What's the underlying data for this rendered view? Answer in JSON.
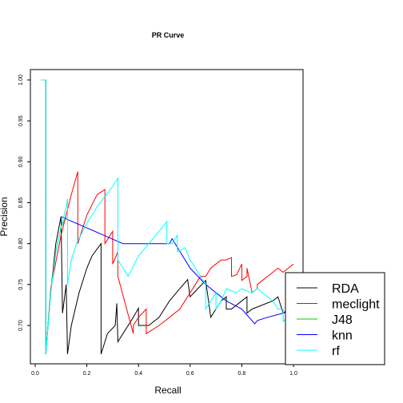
{
  "chart_data": {
    "type": "line",
    "title": "PR Curve",
    "xlabel": "Recall",
    "ylabel": "Precision",
    "xlim": [
      0.0,
      1.0
    ],
    "ylim": [
      0.665,
      1.0
    ],
    "xticks": [
      "0.0",
      "0.2",
      "0.4",
      "0.6",
      "0.8",
      "1.0"
    ],
    "yticks": [
      "0.70",
      "0.75",
      "0.80",
      "0.85",
      "0.90",
      "0.95",
      "1.00"
    ],
    "legend_position": "bottom-right",
    "series": [
      {
        "name": "RDA",
        "color": "#000000",
        "x": [
          0.023,
          0.041,
          0.041,
          0.06,
          0.08,
          0.1,
          0.106,
          0.12,
          0.125,
          0.14,
          0.17,
          0.2,
          0.22,
          0.255,
          0.255,
          0.28,
          0.31,
          0.316,
          0.32,
          0.34,
          0.36,
          0.38,
          0.4,
          0.4,
          0.41,
          0.44,
          0.48,
          0.52,
          0.56,
          0.59,
          0.6,
          0.63,
          0.66,
          0.66,
          0.68,
          0.7,
          0.72,
          0.74,
          0.74,
          0.76,
          0.8,
          0.82,
          0.82,
          0.84,
          0.88,
          0.92,
          0.94,
          0.96,
          0.98,
          1.0
        ],
        "y": [
          1.0,
          1.0,
          0.665,
          0.74,
          0.8,
          0.833,
          0.715,
          0.75,
          0.665,
          0.7,
          0.74,
          0.77,
          0.785,
          0.8,
          0.665,
          0.69,
          0.7,
          0.727,
          0.68,
          0.69,
          0.7,
          0.71,
          0.721,
          0.7,
          0.7,
          0.7,
          0.71,
          0.73,
          0.745,
          0.756,
          0.735,
          0.745,
          0.755,
          0.755,
          0.71,
          0.72,
          0.73,
          0.735,
          0.72,
          0.72,
          0.73,
          0.735,
          0.715,
          0.72,
          0.725,
          0.73,
          0.735,
          0.715,
          0.72,
          0.725
        ]
      },
      {
        "name": "meclight",
        "color": "#ff0000",
        "x": [
          0.023,
          0.041,
          0.041,
          0.06,
          0.1,
          0.14,
          0.165,
          0.165,
          0.2,
          0.24,
          0.27,
          0.27,
          0.3,
          0.3,
          0.32,
          0.32,
          0.38,
          0.38,
          0.4,
          0.43,
          0.43,
          0.48,
          0.52,
          0.56,
          0.58,
          0.58,
          0.6,
          0.62,
          0.64,
          0.66,
          0.68,
          0.7,
          0.72,
          0.74,
          0.76,
          0.76,
          0.78,
          0.8,
          0.8,
          0.82,
          0.82,
          0.84,
          0.86,
          0.86,
          0.88,
          0.9,
          0.92,
          0.94,
          0.96,
          0.98,
          1.0
        ],
        "y": [
          1.0,
          1.0,
          0.665,
          0.745,
          0.81,
          0.86,
          0.888,
          0.8,
          0.835,
          0.86,
          0.866,
          0.8,
          0.815,
          0.775,
          0.79,
          0.76,
          0.69,
          0.7,
          0.71,
          0.72,
          0.69,
          0.7,
          0.71,
          0.72,
          0.73,
          0.73,
          0.74,
          0.75,
          0.76,
          0.76,
          0.77,
          0.775,
          0.78,
          0.78,
          0.783,
          0.76,
          0.762,
          0.775,
          0.755,
          0.76,
          0.77,
          0.74,
          0.745,
          0.75,
          0.755,
          0.76,
          0.765,
          0.77,
          0.765,
          0.77,
          0.775
        ]
      },
      {
        "name": "J48",
        "color": "#00cd00",
        "x": [
          0.023,
          0.041,
          0.041,
          0.06,
          0.08,
          0.1,
          0.12
        ],
        "y": [
          1.0,
          1.0,
          0.665,
          0.74,
          0.79,
          0.82,
          0.833
        ]
      },
      {
        "name": "knn",
        "color": "#0000ff",
        "x": [
          0.1,
          0.34,
          0.52,
          0.53,
          0.6,
          0.66,
          0.74,
          0.8,
          0.85,
          0.86,
          0.9,
          0.96,
          1.0
        ],
        "y": [
          0.833,
          0.8,
          0.8,
          0.806,
          0.77,
          0.75,
          0.73,
          0.72,
          0.702,
          0.706,
          0.71,
          0.715,
          0.72
        ]
      },
      {
        "name": "rf",
        "color": "#00ffff",
        "x": [
          0.023,
          0.041,
          0.041,
          0.06,
          0.08,
          0.1,
          0.12,
          0.125,
          0.125,
          0.14,
          0.16,
          0.2,
          0.24,
          0.3,
          0.32,
          0.32,
          0.36,
          0.4,
          0.44,
          0.48,
          0.51,
          0.51,
          0.53,
          0.55,
          0.55,
          0.58,
          0.6,
          0.62,
          0.64,
          0.66,
          0.66,
          0.68,
          0.7,
          0.7,
          0.72,
          0.74,
          0.76,
          0.78,
          0.8,
          0.82,
          0.84,
          0.86,
          0.88,
          0.9,
          0.92,
          0.94,
          0.96,
          0.96,
          0.98,
          1.0
        ],
        "y": [
          1.0,
          1.0,
          0.665,
          0.74,
          0.79,
          0.82,
          0.845,
          0.855,
          0.75,
          0.78,
          0.8,
          0.825,
          0.845,
          0.87,
          0.88,
          0.78,
          0.76,
          0.785,
          0.8,
          0.815,
          0.827,
          0.8,
          0.8,
          0.81,
          0.79,
          0.795,
          0.78,
          0.77,
          0.76,
          0.75,
          0.72,
          0.73,
          0.74,
          0.72,
          0.73,
          0.745,
          0.742,
          0.74,
          0.745,
          0.742,
          0.74,
          0.745,
          0.74,
          0.735,
          0.73,
          0.72,
          0.72,
          0.705,
          0.71,
          0.715
        ]
      }
    ]
  }
}
